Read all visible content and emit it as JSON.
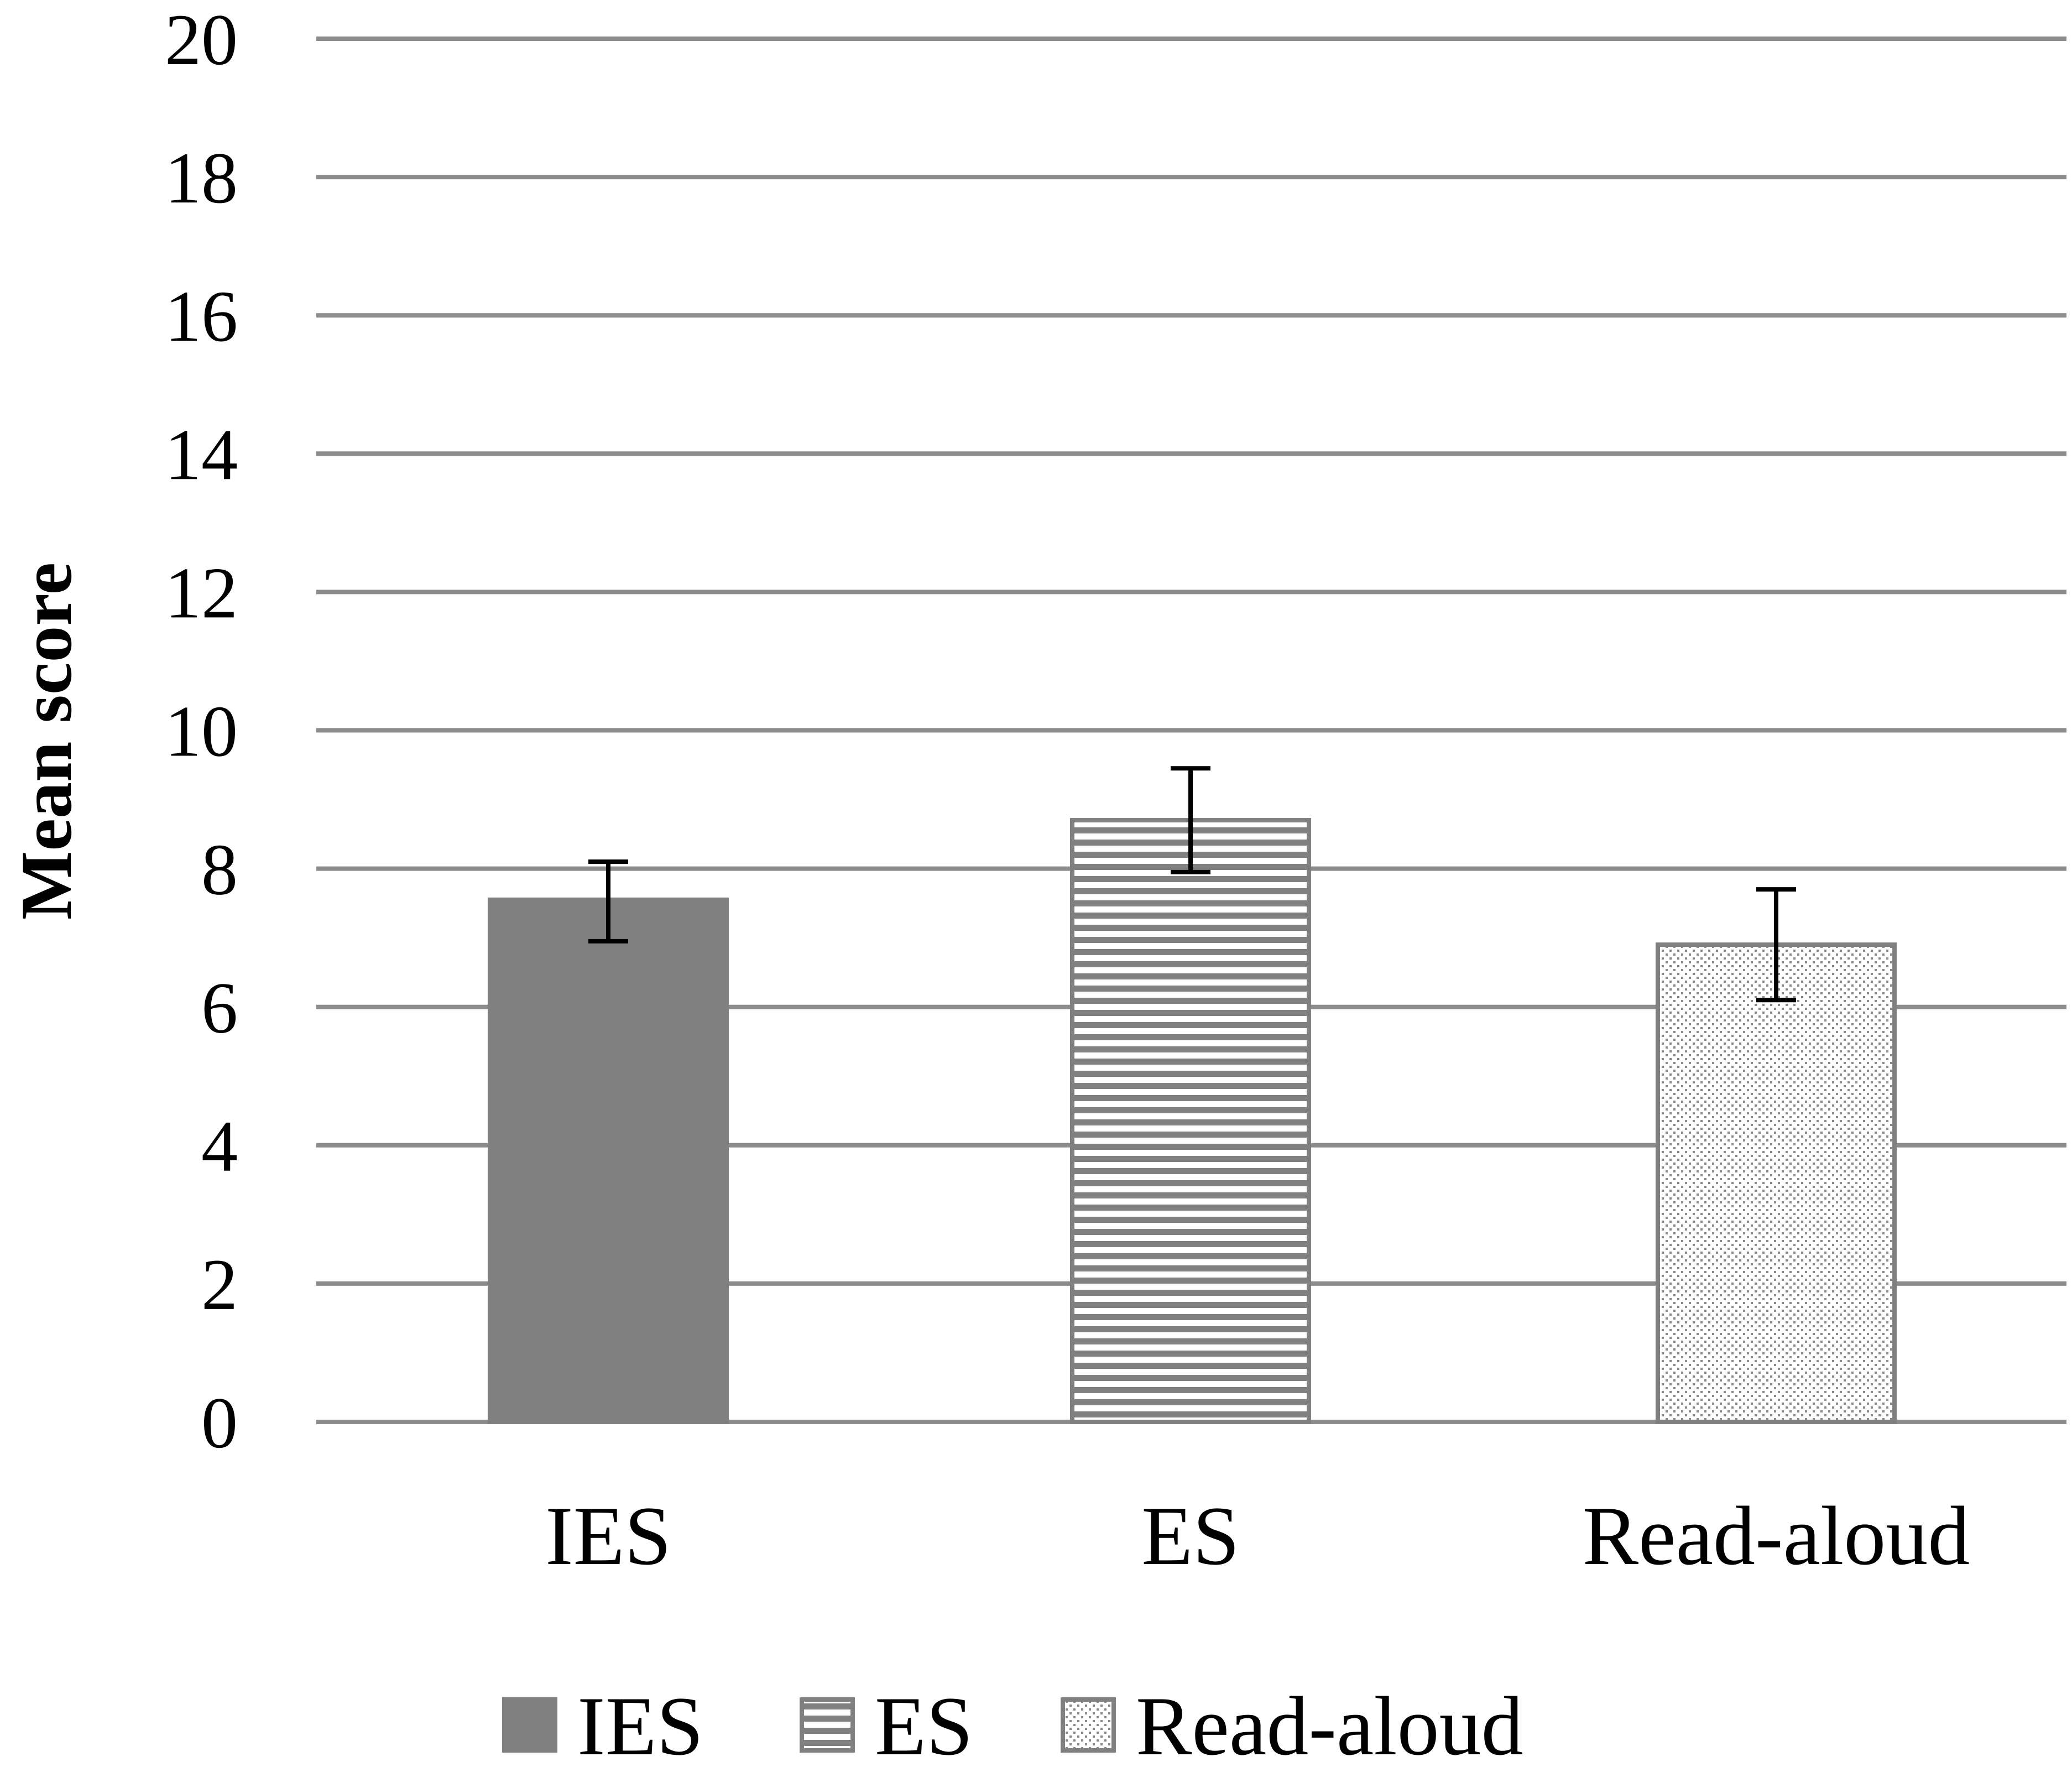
{
  "chart_data": {
    "type": "bar",
    "title": "",
    "xlabel": "",
    "ylabel": "Mean score",
    "ylim": [
      0,
      20
    ],
    "yticks": [
      "0",
      "2",
      "4",
      "6",
      "8",
      "10",
      "12",
      "14",
      "16",
      "18",
      "20"
    ],
    "categories": [
      "IES",
      "ES",
      "Read-aloud"
    ],
    "values": [
      7.55,
      8.7,
      6.9
    ],
    "error_bars": [
      {
        "low": 6.95,
        "high": 8.1
      },
      {
        "low": 7.95,
        "high": 9.45
      },
      {
        "low": 6.1,
        "high": 7.7
      }
    ],
    "grid": "horizontal",
    "legend": {
      "placement": "bottom",
      "entries": [
        {
          "label": "IES",
          "fill": "solid",
          "color": "#808080"
        },
        {
          "label": "ES",
          "fill": "horizontal-stripes",
          "color": "#808080"
        },
        {
          "label": "Read-aloud",
          "fill": "dotted",
          "color": "#808080"
        }
      ]
    },
    "colors": {
      "bar": "#808080",
      "grid": "#8c8c8c",
      "error_bar": "#000000"
    }
  }
}
